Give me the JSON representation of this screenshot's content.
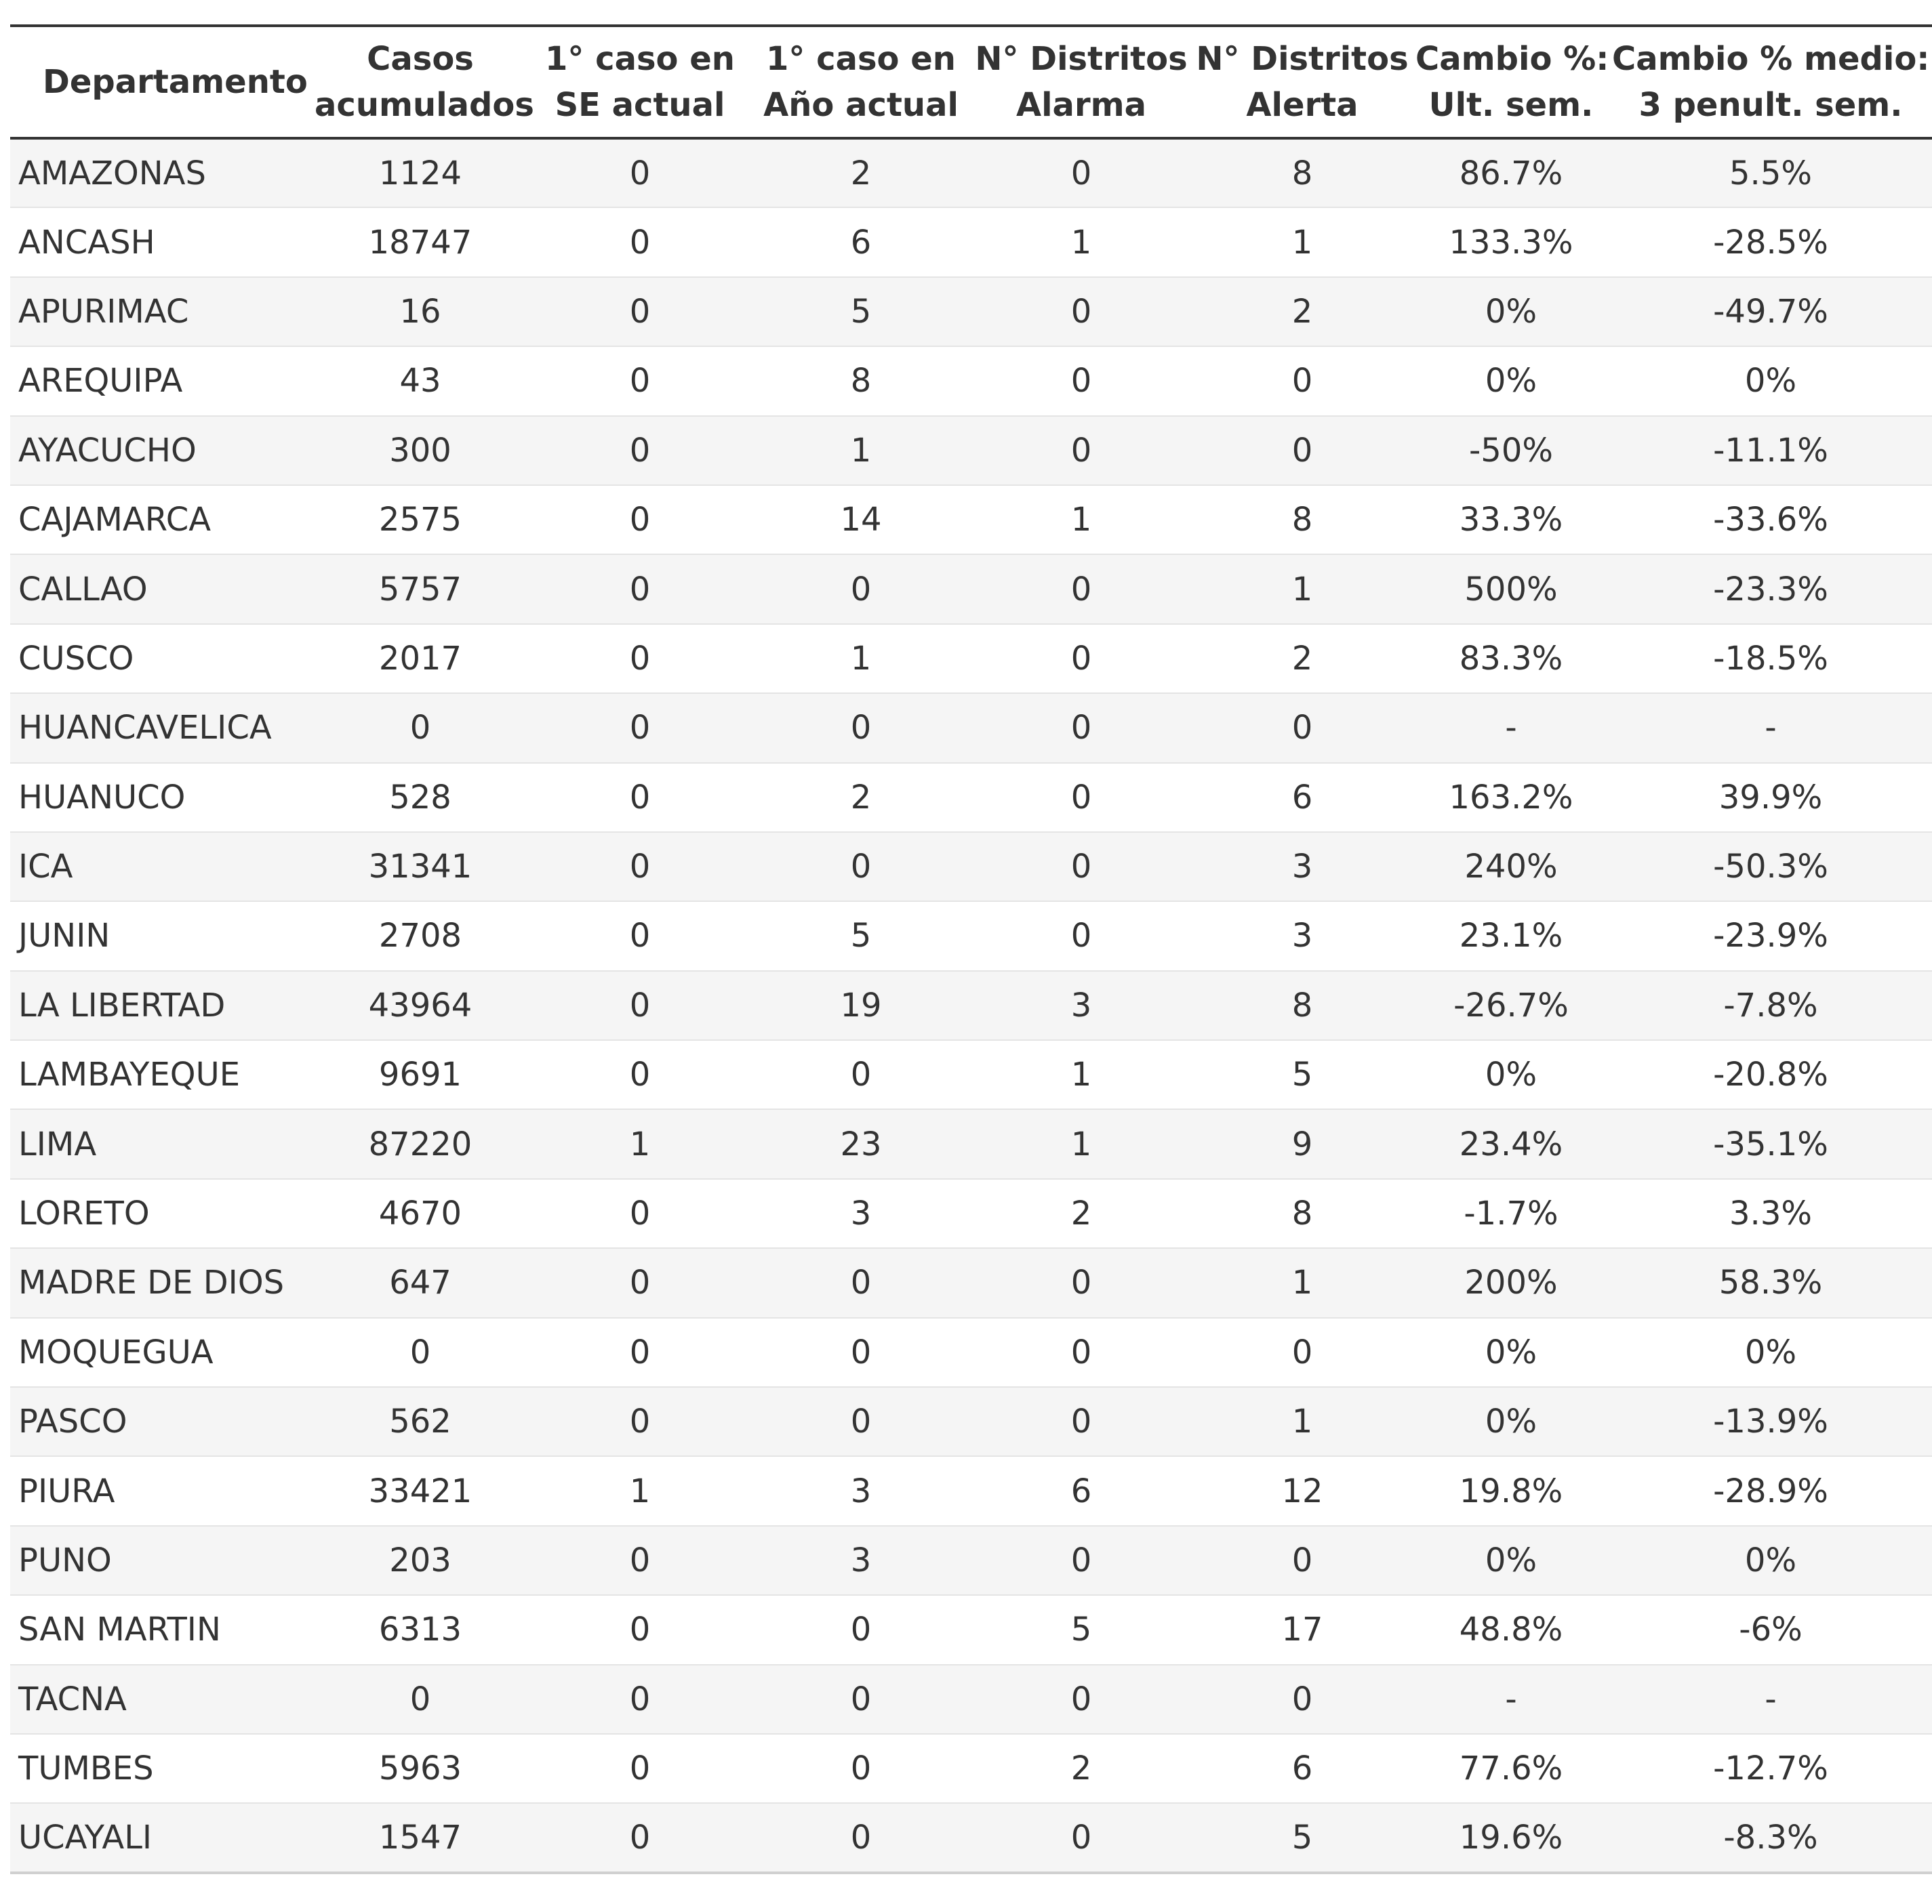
{
  "table": {
    "headers": [
      [
        "Departamento"
      ],
      [
        "Casos",
        "acumulados"
      ],
      [
        "1° caso en",
        "SE actual"
      ],
      [
        "1° caso en",
        "Año actual"
      ],
      [
        "N° Distritos",
        "Alarma"
      ],
      [
        "N° Distritos",
        "Alerta"
      ],
      [
        "Cambio %:",
        "Ult. sem."
      ],
      [
        "Cambio % medio:",
        "3 penult. sem."
      ]
    ],
    "rows": [
      [
        "AMAZONAS",
        "1124",
        "0",
        "2",
        "0",
        "8",
        "86.7%",
        "5.5%"
      ],
      [
        "ANCASH",
        "18747",
        "0",
        "6",
        "1",
        "1",
        "133.3%",
        "-28.5%"
      ],
      [
        "APURIMAC",
        "16",
        "0",
        "5",
        "0",
        "2",
        "0%",
        "-49.7%"
      ],
      [
        "AREQUIPA",
        "43",
        "0",
        "8",
        "0",
        "0",
        "0%",
        "0%"
      ],
      [
        "AYACUCHO",
        "300",
        "0",
        "1",
        "0",
        "0",
        "-50%",
        "-11.1%"
      ],
      [
        "CAJAMARCA",
        "2575",
        "0",
        "14",
        "1",
        "8",
        "33.3%",
        "-33.6%"
      ],
      [
        "CALLAO",
        "5757",
        "0",
        "0",
        "0",
        "1",
        "500%",
        "-23.3%"
      ],
      [
        "CUSCO",
        "2017",
        "0",
        "1",
        "0",
        "2",
        "83.3%",
        "-18.5%"
      ],
      [
        "HUANCAVELICA",
        "0",
        "0",
        "0",
        "0",
        "0",
        "-",
        "-"
      ],
      [
        "HUANUCO",
        "528",
        "0",
        "2",
        "0",
        "6",
        "163.2%",
        "39.9%"
      ],
      [
        "ICA",
        "31341",
        "0",
        "0",
        "0",
        "3",
        "240%",
        "-50.3%"
      ],
      [
        "JUNIN",
        "2708",
        "0",
        "5",
        "0",
        "3",
        "23.1%",
        "-23.9%"
      ],
      [
        "LA LIBERTAD",
        "43964",
        "0",
        "19",
        "3",
        "8",
        "-26.7%",
        "-7.8%"
      ],
      [
        "LAMBAYEQUE",
        "9691",
        "0",
        "0",
        "1",
        "5",
        "0%",
        "-20.8%"
      ],
      [
        "LIMA",
        "87220",
        "1",
        "23",
        "1",
        "9",
        "23.4%",
        "-35.1%"
      ],
      [
        "LORETO",
        "4670",
        "0",
        "3",
        "2",
        "8",
        "-1.7%",
        "3.3%"
      ],
      [
        "MADRE DE DIOS",
        "647",
        "0",
        "0",
        "0",
        "1",
        "200%",
        "58.3%"
      ],
      [
        "MOQUEGUA",
        "0",
        "0",
        "0",
        "0",
        "0",
        "0%",
        "0%"
      ],
      [
        "PASCO",
        "562",
        "0",
        "0",
        "0",
        "1",
        "0%",
        "-13.9%"
      ],
      [
        "PIURA",
        "33421",
        "1",
        "3",
        "6",
        "12",
        "19.8%",
        "-28.9%"
      ],
      [
        "PUNO",
        "203",
        "0",
        "3",
        "0",
        "0",
        "0%",
        "0%"
      ],
      [
        "SAN MARTIN",
        "6313",
        "0",
        "0",
        "5",
        "17",
        "48.8%",
        "-6%"
      ],
      [
        "TACNA",
        "0",
        "0",
        "0",
        "0",
        "0",
        "-",
        "-"
      ],
      [
        "TUMBES",
        "5963",
        "0",
        "0",
        "2",
        "6",
        "77.6%",
        "-12.7%"
      ],
      [
        "UCAYALI",
        "1547",
        "0",
        "0",
        "0",
        "5",
        "19.6%",
        "-8.3%"
      ]
    ]
  },
  "colors": {
    "text": "#333333",
    "stripe": "#f5f5f5",
    "rule": "#333333",
    "row_divider": "#e4e4e4"
  }
}
